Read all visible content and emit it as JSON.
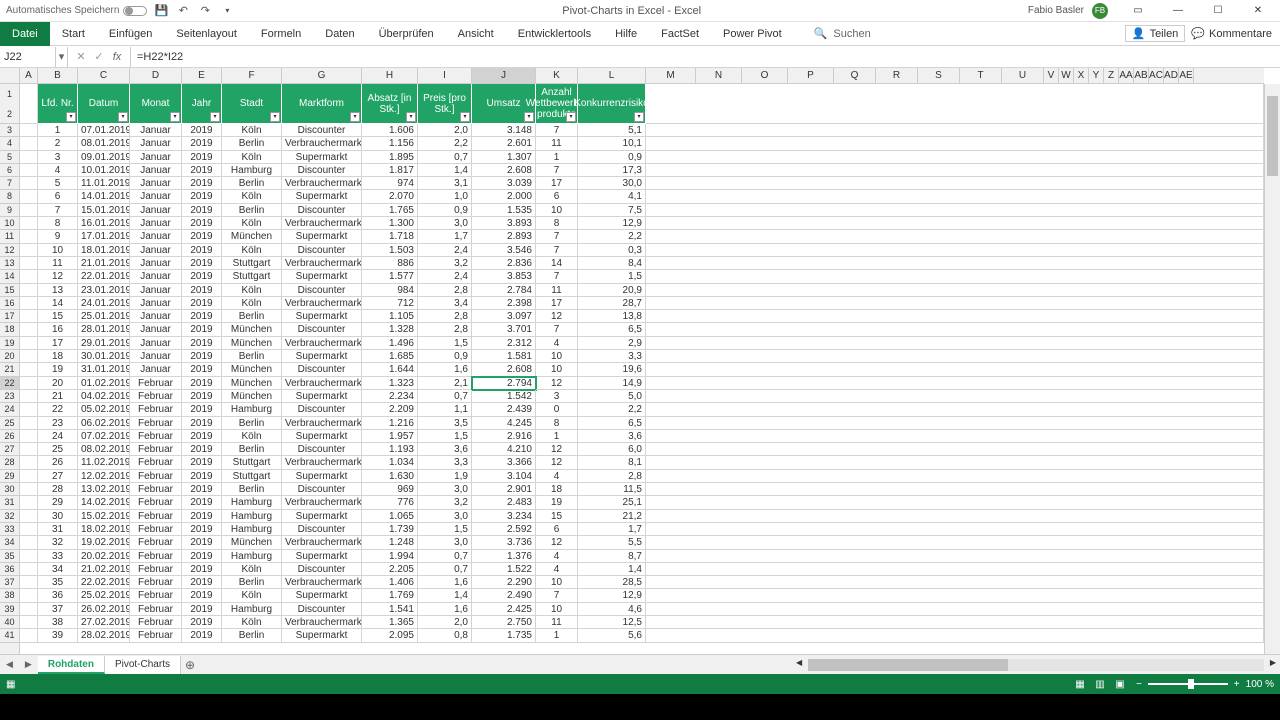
{
  "titlebar": {
    "autosave": "Automatisches Speichern",
    "title": "Pivot-Charts in Excel  -  Excel",
    "user": "Fabio Basler",
    "user_initials": "FB"
  },
  "ribbon": {
    "tabs": [
      "Datei",
      "Start",
      "Einfügen",
      "Seitenlayout",
      "Formeln",
      "Daten",
      "Überprüfen",
      "Ansicht",
      "Entwicklertools",
      "Hilfe",
      "FactSet",
      "Power Pivot"
    ],
    "search_placeholder": "Suchen",
    "share": "Teilen",
    "comments": "Kommentare"
  },
  "formulabar": {
    "name_box": "J22",
    "formula": "=H22*I22"
  },
  "columns": {
    "letters": [
      "A",
      "B",
      "C",
      "D",
      "E",
      "F",
      "G",
      "H",
      "I",
      "J",
      "K",
      "L",
      "M",
      "N",
      "O",
      "P",
      "Q",
      "R",
      "S",
      "T",
      "U",
      "V",
      "W",
      "X",
      "Y",
      "Z",
      "AA",
      "AB",
      "AC",
      "AD",
      "AE"
    ],
    "widths": [
      18,
      40,
      52,
      52,
      40,
      60,
      80,
      56,
      54,
      64,
      42,
      68,
      50,
      46,
      46,
      46,
      42,
      42,
      42,
      42,
      42,
      15,
      15,
      15,
      15,
      15,
      15,
      15,
      15,
      15,
      15
    ],
    "selected_index": 9
  },
  "table": {
    "headers": [
      "Lfd. Nr.",
      "Datum",
      "Monat",
      "Jahr",
      "Stadt",
      "Marktform",
      "Absatz [in Stk.]",
      "Preis [pro Stk.]",
      "Umsatz",
      "Anzahl Wettbewerbs-produkte",
      "Konkurrenzrisiko"
    ],
    "header_bg": "#21a366",
    "rows": [
      [
        "1",
        "07.01.2019",
        "Januar",
        "2019",
        "Köln",
        "Discounter",
        "1.606",
        "2,0",
        "3.148",
        "7",
        "5,1"
      ],
      [
        "2",
        "08.01.2019",
        "Januar",
        "2019",
        "Berlin",
        "Verbrauchermarkt",
        "1.156",
        "2,2",
        "2.601",
        "11",
        "10,1"
      ],
      [
        "3",
        "09.01.2019",
        "Januar",
        "2019",
        "Köln",
        "Supermarkt",
        "1.895",
        "0,7",
        "1.307",
        "1",
        "0,9"
      ],
      [
        "4",
        "10.01.2019",
        "Januar",
        "2019",
        "Hamburg",
        "Discounter",
        "1.817",
        "1,4",
        "2.608",
        "7",
        "17,3"
      ],
      [
        "5",
        "11.01.2019",
        "Januar",
        "2019",
        "Berlin",
        "Verbrauchermarkt",
        "974",
        "3,1",
        "3.039",
        "17",
        "30,0"
      ],
      [
        "6",
        "14.01.2019",
        "Januar",
        "2019",
        "Köln",
        "Supermarkt",
        "2.070",
        "1,0",
        "2.000",
        "6",
        "4,1"
      ],
      [
        "7",
        "15.01.2019",
        "Januar",
        "2019",
        "Berlin",
        "Discounter",
        "1.765",
        "0,9",
        "1.535",
        "10",
        "7,5"
      ],
      [
        "8",
        "16.01.2019",
        "Januar",
        "2019",
        "Köln",
        "Verbrauchermarkt",
        "1.300",
        "3,0",
        "3.893",
        "8",
        "12,9"
      ],
      [
        "9",
        "17.01.2019",
        "Januar",
        "2019",
        "München",
        "Supermarkt",
        "1.718",
        "1,7",
        "2.893",
        "7",
        "2,2"
      ],
      [
        "10",
        "18.01.2019",
        "Januar",
        "2019",
        "Köln",
        "Discounter",
        "1.503",
        "2,4",
        "3.546",
        "7",
        "0,3"
      ],
      [
        "11",
        "21.01.2019",
        "Januar",
        "2019",
        "Stuttgart",
        "Verbrauchermarkt",
        "886",
        "3,2",
        "2.836",
        "14",
        "8,4"
      ],
      [
        "12",
        "22.01.2019",
        "Januar",
        "2019",
        "Stuttgart",
        "Supermarkt",
        "1.577",
        "2,4",
        "3.853",
        "7",
        "1,5"
      ],
      [
        "13",
        "23.01.2019",
        "Januar",
        "2019",
        "Köln",
        "Discounter",
        "984",
        "2,8",
        "2.784",
        "11",
        "20,9"
      ],
      [
        "14",
        "24.01.2019",
        "Januar",
        "2019",
        "Köln",
        "Verbrauchermarkt",
        "712",
        "3,4",
        "2.398",
        "17",
        "28,7"
      ],
      [
        "15",
        "25.01.2019",
        "Januar",
        "2019",
        "Berlin",
        "Supermarkt",
        "1.105",
        "2,8",
        "3.097",
        "12",
        "13,8"
      ],
      [
        "16",
        "28.01.2019",
        "Januar",
        "2019",
        "München",
        "Discounter",
        "1.328",
        "2,8",
        "3.701",
        "7",
        "6,5"
      ],
      [
        "17",
        "29.01.2019",
        "Januar",
        "2019",
        "München",
        "Verbrauchermarkt",
        "1.496",
        "1,5",
        "2.312",
        "4",
        "2,9"
      ],
      [
        "18",
        "30.01.2019",
        "Januar",
        "2019",
        "Berlin",
        "Supermarkt",
        "1.685",
        "0,9",
        "1.581",
        "10",
        "3,3"
      ],
      [
        "19",
        "31.01.2019",
        "Januar",
        "2019",
        "München",
        "Discounter",
        "1.644",
        "1,6",
        "2.608",
        "10",
        "19,6"
      ],
      [
        "20",
        "01.02.2019",
        "Februar",
        "2019",
        "München",
        "Verbrauchermarkt",
        "1.323",
        "2,1",
        "2.794",
        "12",
        "14,9"
      ],
      [
        "21",
        "04.02.2019",
        "Februar",
        "2019",
        "München",
        "Supermarkt",
        "2.234",
        "0,7",
        "1.542",
        "3",
        "5,0"
      ],
      [
        "22",
        "05.02.2019",
        "Februar",
        "2019",
        "Hamburg",
        "Discounter",
        "2.209",
        "1,1",
        "2.439",
        "0",
        "2,2"
      ],
      [
        "23",
        "06.02.2019",
        "Februar",
        "2019",
        "Berlin",
        "Verbrauchermarkt",
        "1.216",
        "3,5",
        "4.245",
        "8",
        "6,5"
      ],
      [
        "24",
        "07.02.2019",
        "Februar",
        "2019",
        "Köln",
        "Supermarkt",
        "1.957",
        "1,5",
        "2.916",
        "1",
        "3,6"
      ],
      [
        "25",
        "08.02.2019",
        "Februar",
        "2019",
        "Berlin",
        "Discounter",
        "1.193",
        "3,6",
        "4.210",
        "12",
        "6,0"
      ],
      [
        "26",
        "11.02.2019",
        "Februar",
        "2019",
        "Stuttgart",
        "Verbrauchermarkt",
        "1.034",
        "3,3",
        "3.366",
        "12",
        "8,1"
      ],
      [
        "27",
        "12.02.2019",
        "Februar",
        "2019",
        "Stuttgart",
        "Supermarkt",
        "1.630",
        "1,9",
        "3.104",
        "4",
        "2,8"
      ],
      [
        "28",
        "13.02.2019",
        "Februar",
        "2019",
        "Berlin",
        "Discounter",
        "969",
        "3,0",
        "2.901",
        "18",
        "11,5"
      ],
      [
        "29",
        "14.02.2019",
        "Februar",
        "2019",
        "Hamburg",
        "Verbrauchermarkt",
        "776",
        "3,2",
        "2.483",
        "19",
        "25,1"
      ],
      [
        "30",
        "15.02.2019",
        "Februar",
        "2019",
        "Hamburg",
        "Supermarkt",
        "1.065",
        "3,0",
        "3.234",
        "15",
        "21,2"
      ],
      [
        "31",
        "18.02.2019",
        "Februar",
        "2019",
        "Hamburg",
        "Discounter",
        "1.739",
        "1,5",
        "2.592",
        "6",
        "1,7"
      ],
      [
        "32",
        "19.02.2019",
        "Februar",
        "2019",
        "München",
        "Verbrauchermarkt",
        "1.248",
        "3,0",
        "3.736",
        "12",
        "5,5"
      ],
      [
        "33",
        "20.02.2019",
        "Februar",
        "2019",
        "Hamburg",
        "Supermarkt",
        "1.994",
        "0,7",
        "1.376",
        "4",
        "8,7"
      ],
      [
        "34",
        "21.02.2019",
        "Februar",
        "2019",
        "Köln",
        "Discounter",
        "2.205",
        "0,7",
        "1.522",
        "4",
        "1,4"
      ],
      [
        "35",
        "22.02.2019",
        "Februar",
        "2019",
        "Berlin",
        "Verbrauchermarkt",
        "1.406",
        "1,6",
        "2.290",
        "10",
        "28,5"
      ],
      [
        "36",
        "25.02.2019",
        "Februar",
        "2019",
        "Köln",
        "Supermarkt",
        "1.769",
        "1,4",
        "2.490",
        "7",
        "12,9"
      ],
      [
        "37",
        "26.02.2019",
        "Februar",
        "2019",
        "Hamburg",
        "Discounter",
        "1.541",
        "1,6",
        "2.425",
        "10",
        "4,6"
      ],
      [
        "38",
        "27.02.2019",
        "Februar",
        "2019",
        "Köln",
        "Verbrauchermarkt",
        "1.365",
        "2,0",
        "2.750",
        "11",
        "12,5"
      ],
      [
        "39",
        "28.02.2019",
        "Februar",
        "2019",
        "Berlin",
        "Supermarkt",
        "2.095",
        "0,8",
        "1.735",
        "1",
        "5,6"
      ]
    ],
    "data_col_widths": [
      40,
      52,
      52,
      40,
      60,
      80,
      56,
      54,
      64,
      42,
      68
    ],
    "active_cell": {
      "row_index": 19,
      "col_index": 8
    }
  },
  "sheets": {
    "tabs": [
      "Rohdaten",
      "Pivot-Charts"
    ],
    "active_index": 0
  },
  "statusbar": {
    "zoom": "100 %"
  }
}
